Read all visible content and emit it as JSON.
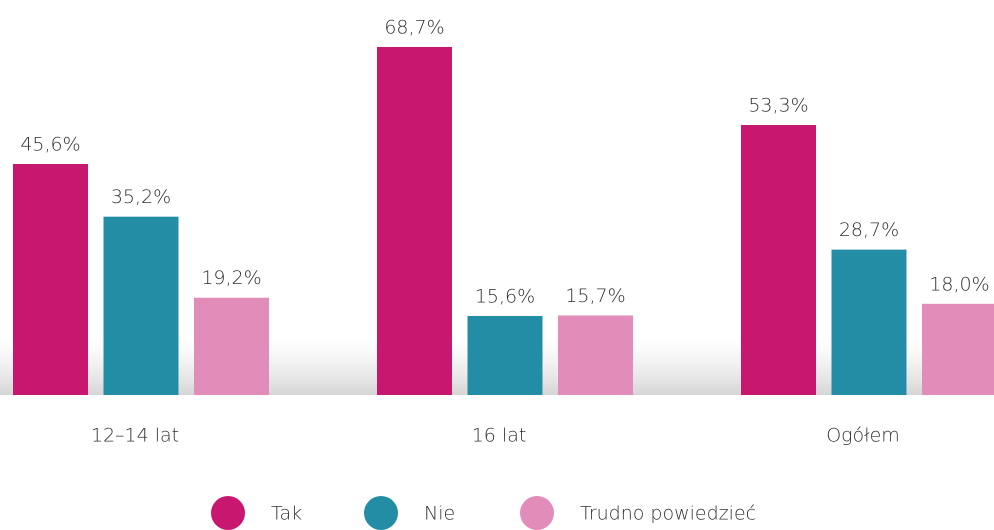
{
  "chart_data": {
    "type": "bar",
    "categories": [
      "12–14 lat",
      "16 lat",
      "Ogółem"
    ],
    "series": [
      {
        "name": "Tak",
        "color": "#c8176f",
        "values": [
          45.6,
          68.7,
          53.3
        ],
        "value_labels": [
          "45,6%",
          "68,7%",
          "53,3%"
        ]
      },
      {
        "name": "Nie",
        "color": "#238da5",
        "values": [
          35.2,
          15.6,
          28.7
        ],
        "value_labels": [
          "35,2%",
          "15,6%",
          "28,7%"
        ]
      },
      {
        "name": "Trudno powiedzieć",
        "color": "#e28cb9",
        "values": [
          19.2,
          15.7,
          18.0
        ],
        "value_labels": [
          "19,2%",
          "15,7%",
          "18,0%"
        ]
      }
    ]
  }
}
